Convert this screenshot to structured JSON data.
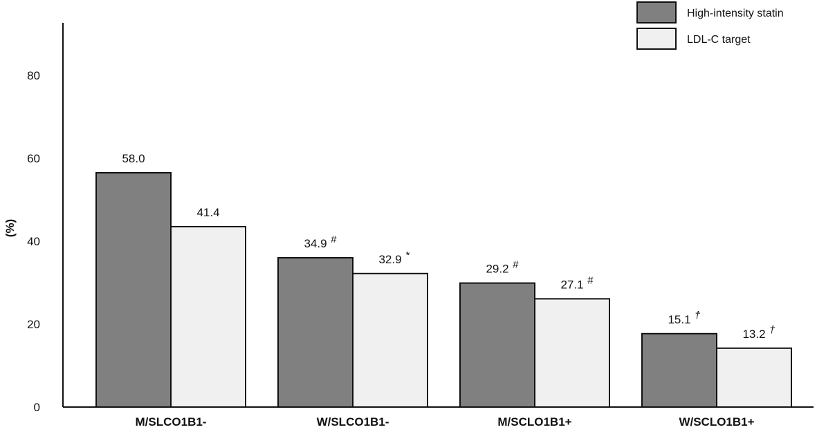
{
  "chart_data": {
    "type": "bar",
    "title": "",
    "xlabel": "",
    "ylabel": "(%)",
    "ylim": [
      0,
      93
    ],
    "yticks": [
      "0",
      "20",
      "40",
      "60",
      "80"
    ],
    "categories": [
      "M/SLCO1B1-",
      "W/SLCO1B1-",
      "M/SCLO1B1+",
      "W/SCLO1B1+"
    ],
    "series": [
      {
        "name": "High-intensity statin",
        "color": "#808080",
        "values": [
          58.0,
          34.9,
          29.2,
          15.1
        ],
        "labels": [
          "58.0",
          "34.9",
          "29.2",
          "15.1"
        ],
        "marks": [
          "",
          "#",
          "#",
          "†"
        ],
        "bar_tops": [
          56.5,
          36.0,
          29.9,
          17.7
        ]
      },
      {
        "name": "LDL-C target",
        "color": "#f0f0f0",
        "values": [
          41.4,
          32.9,
          27.1,
          13.2
        ],
        "labels": [
          "41.4",
          "32.9",
          "27.1",
          "13.2"
        ],
        "marks": [
          "",
          "*",
          "#",
          "†"
        ],
        "bar_tops": [
          43.5,
          32.2,
          26.1,
          14.2
        ]
      }
    ],
    "legend_position": "top-right",
    "grid": false
  }
}
